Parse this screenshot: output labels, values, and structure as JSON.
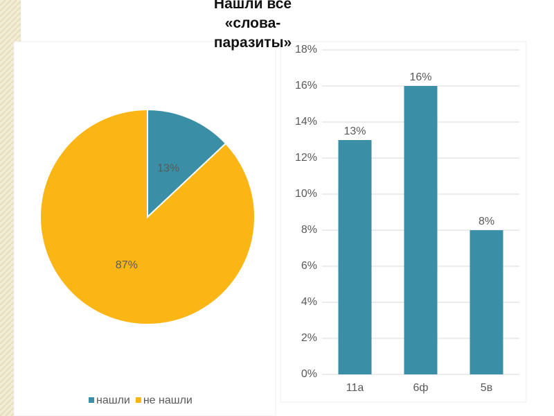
{
  "title": "Нашли все «слова-паразиты»",
  "chart_data": [
    {
      "type": "pie",
      "categories": [
        "нашли",
        "не нашли"
      ],
      "values": [
        13,
        87
      ],
      "value_labels": [
        "13%",
        "87%"
      ],
      "colors": [
        "#3a8fa6",
        "#fbb616"
      ],
      "legend": "bottom"
    },
    {
      "type": "bar",
      "categories": [
        "11а",
        "6ф",
        "5в"
      ],
      "values": [
        13,
        16,
        8
      ],
      "value_labels": [
        "13%",
        "16%",
        "8%"
      ],
      "color": "#3a8fa6",
      "ylim": [
        0,
        18
      ],
      "yticks": [
        {
          "value": 0,
          "label": "0%"
        },
        {
          "value": 2,
          "label": "2%"
        },
        {
          "value": 4,
          "label": "4%"
        },
        {
          "value": 6,
          "label": "6%"
        },
        {
          "value": 8,
          "label": "8%"
        },
        {
          "value": 10,
          "label": "10%"
        },
        {
          "value": 12,
          "label": "12%"
        },
        {
          "value": 14,
          "label": "14%"
        },
        {
          "value": 16,
          "label": "16%"
        },
        {
          "value": 18,
          "label": "18%"
        }
      ],
      "grid": true
    }
  ]
}
